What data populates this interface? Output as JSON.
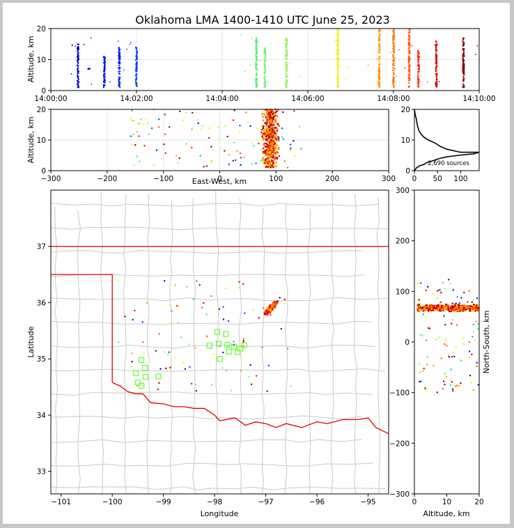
{
  "title": "Oklahoma LMA 1400-1410 UTC June 25, 2023",
  "source_count_label": "2,690 sources",
  "chart_data": [
    {
      "type": "scatter",
      "id": "time-altitude",
      "xlabel": "",
      "ylabel": "Altitude, km",
      "xlim": [
        "14:00:00",
        "14:10:00"
      ],
      "ylim": [
        0,
        20
      ],
      "x_ticks": [
        "14:00:00",
        "14:02:00",
        "14:04:00",
        "14:06:00",
        "14:08:00",
        "14:10:00"
      ],
      "y_ticks": [
        0,
        10,
        20
      ],
      "grid": true,
      "colormap": "time (blue → green → yellow → orange → dark red)",
      "columns": [
        {
          "t": "14:00:38",
          "alt": [
            1,
            15
          ],
          "color": "#0000c8"
        },
        {
          "t": "14:00:53",
          "alt": [
            7,
            7
          ],
          "color": "#0000c8"
        },
        {
          "t": "14:01:15",
          "alt": [
            1,
            11
          ],
          "color": "#0010e0"
        },
        {
          "t": "14:01:36",
          "alt": [
            1,
            14
          ],
          "color": "#0020f0"
        },
        {
          "t": "14:02:00",
          "alt": [
            1,
            14
          ],
          "color": "#0040ff"
        },
        {
          "t": "14:04:48",
          "alt": [
            1,
            17
          ],
          "color": "#55ee77"
        },
        {
          "t": "14:05:00",
          "alt": [
            1,
            14
          ],
          "color": "#77f077"
        },
        {
          "t": "14:05:30",
          "alt": [
            1,
            17
          ],
          "color": "#99f055"
        },
        {
          "t": "14:06:42",
          "alt": [
            1,
            20
          ],
          "color": "#f0f000"
        },
        {
          "t": "14:07:40",
          "alt": [
            1,
            20
          ],
          "color": "#ff9900"
        },
        {
          "t": "14:08:00",
          "alt": [
            1,
            20
          ],
          "color": "#ff7700"
        },
        {
          "t": "14:08:22",
          "alt": [
            1,
            20
          ],
          "color": "#ff5500"
        },
        {
          "t": "14:08:35",
          "alt": [
            1,
            13
          ],
          "color": "#ff2200"
        },
        {
          "t": "14:09:00",
          "alt": [
            1,
            16
          ],
          "color": "#dd0000"
        },
        {
          "t": "14:09:38",
          "alt": [
            1,
            17
          ],
          "color": "#800000"
        }
      ]
    },
    {
      "type": "scatter",
      "id": "east-west-altitude",
      "xlabel": "East-West, km",
      "ylabel": "Altitude, km",
      "xlim": [
        -300,
        300
      ],
      "ylim": [
        0,
        20
      ],
      "x_ticks": [
        -300,
        -200,
        -100,
        0,
        100,
        200,
        300
      ],
      "y_ticks": [
        0,
        10,
        20
      ],
      "grid": true,
      "main_cluster": {
        "x": [
          75,
          105
        ],
        "alt": [
          1,
          20
        ]
      },
      "scatter_range": {
        "x": [
          -160,
          145
        ],
        "alt": [
          1,
          20
        ]
      }
    },
    {
      "type": "line",
      "id": "altitude-histogram",
      "xlabel": "",
      "ylabel": "",
      "xlim": [
        0,
        140
      ],
      "ylim": [
        0,
        20
      ],
      "x_ticks": [
        0,
        50,
        100
      ],
      "y_ticks": [
        0,
        10,
        20
      ],
      "x": [
        0,
        1,
        2,
        4,
        5,
        6,
        8,
        10,
        14,
        20,
        30,
        45,
        55,
        70,
        100,
        140,
        128,
        95,
        70,
        55,
        45,
        35,
        25,
        20,
        15,
        10,
        8,
        5,
        4,
        3,
        2,
        1,
        0
      ],
      "y": [
        20,
        19,
        18,
        17,
        16,
        15,
        14,
        13,
        12,
        11,
        10,
        9,
        8,
        7,
        6,
        6,
        5.5,
        5,
        4.5,
        4,
        3.5,
        3,
        2.5,
        2,
        1.8,
        1.5,
        1.2,
        1,
        0.8,
        0.6,
        0.4,
        0.2,
        0
      ]
    },
    {
      "type": "scatter",
      "id": "plan-view-map",
      "xlabel": "Longitude",
      "ylabel": "Latitude",
      "xlim": [
        -101.2,
        -94.6
      ],
      "ylim": [
        32.6,
        38.0
      ],
      "x_ticks": [
        -101,
        -100,
        -99,
        -98,
        -97,
        -96,
        -95
      ],
      "y_ticks": [
        33,
        34,
        35,
        36,
        37
      ],
      "grid": false,
      "border_color": "#e00000",
      "county_color": "#c8c8c8",
      "main_cluster": {
        "lon": [
          -97.0,
          -96.8
        ],
        "lat": [
          35.8,
          36.0
        ]
      },
      "stations": [
        {
          "lon": -97.95,
          "lat": 35.48
        },
        {
          "lon": -97.78,
          "lat": 35.44
        },
        {
          "lon": -98.1,
          "lat": 35.24
        },
        {
          "lon": -97.92,
          "lat": 35.27
        },
        {
          "lon": -97.75,
          "lat": 35.25
        },
        {
          "lon": -97.62,
          "lat": 35.22
        },
        {
          "lon": -97.5,
          "lat": 35.18
        },
        {
          "lon": -97.42,
          "lat": 35.24
        },
        {
          "lon": -97.72,
          "lat": 35.13
        },
        {
          "lon": -97.55,
          "lat": 35.12
        },
        {
          "lon": -97.9,
          "lat": 35.0
        },
        {
          "lon": -99.43,
          "lat": 34.98
        },
        {
          "lon": -99.36,
          "lat": 34.84
        },
        {
          "lon": -99.54,
          "lat": 34.75
        },
        {
          "lon": -99.35,
          "lat": 34.68
        },
        {
          "lon": -99.1,
          "lat": 34.69
        },
        {
          "lon": -99.5,
          "lat": 34.58
        },
        {
          "lon": -99.43,
          "lat": 34.52
        }
      ]
    },
    {
      "type": "scatter",
      "id": "altitude-north-south",
      "xlabel": "Altitude, km",
      "ylabel": "North-South, km",
      "xlim": [
        0,
        20
      ],
      "ylim": [
        -300,
        300
      ],
      "x_ticks": [
        0,
        10,
        20
      ],
      "y_ticks": [
        -300,
        -200,
        -100,
        0,
        100,
        200,
        300
      ],
      "main_cluster": {
        "alt": [
          1,
          20
        ],
        "ns": [
          60,
          75
        ]
      },
      "scatter_range": {
        "alt": [
          1,
          20
        ],
        "ns": [
          -100,
          125
        ]
      }
    }
  ]
}
